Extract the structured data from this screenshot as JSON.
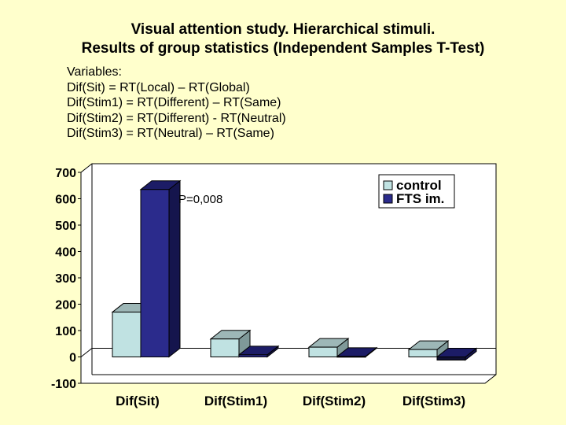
{
  "title_line1": "Visual attention study. Hierarchical stimuli.",
  "title_line2": "Results of group statistics (Independent Samples T-Test)",
  "variables": {
    "heading": "Variables:",
    "lines": [
      "Dif(Sit) = RT(Local) – RT(Global)",
      "Dif(Stim1) = RT(Different) – RT(Same)",
      "Dif(Stim2) = RT(Different) - RT(Neutral)",
      "Dif(Stim3) = RT(Neutral) – RT(Same)"
    ]
  },
  "chart_data": {
    "type": "bar",
    "style": "3d-clustered",
    "categories": [
      "Dif(Sit)",
      "Dif(Stim1)",
      "Dif(Stim2)",
      "Dif(Stim3)"
    ],
    "series": [
      {
        "name": "control",
        "values": [
          170,
          68,
          37,
          28
        ],
        "color": "#c0e2e2"
      },
      {
        "name": "FTS im.",
        "values": [
          635,
          8,
          2,
          -12
        ],
        "color": "#2b2b8c"
      }
    ],
    "series_colors_extra": {
      "FTS im. last bar": "#111133"
    },
    "yticks": [
      700,
      600,
      500,
      400,
      300,
      200,
      100,
      0,
      -100
    ],
    "ylim": [
      -100,
      700
    ],
    "legend_position": "top-right",
    "grid": false,
    "annotations": [
      {
        "text": "P=0,008"
      }
    ],
    "title": "",
    "xlabel": "",
    "ylabel": ""
  }
}
